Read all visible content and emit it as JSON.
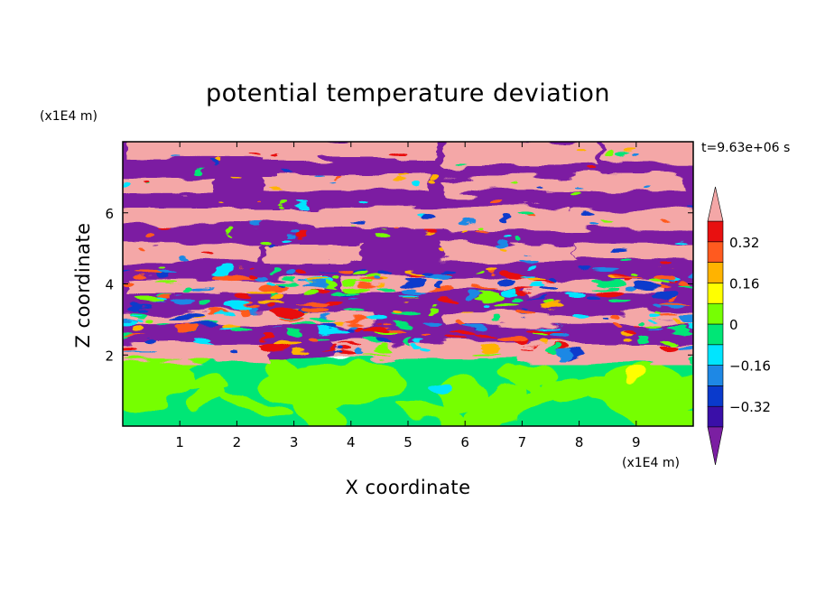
{
  "chart_data": {
    "type": "heatmap",
    "title": "potential temperature deviation",
    "xlabel": "X coordinate",
    "ylabel": "Z coordinate",
    "x_unit": "(x1E4 m)",
    "y_unit": "(x1E4 m)",
    "time_label": "t=9.63e+06 s",
    "xlim": [
      0,
      10
    ],
    "ylim": [
      0,
      8
    ],
    "x_ticks": [
      1,
      2,
      3,
      4,
      5,
      6,
      7,
      8,
      9
    ],
    "y_ticks": [
      2,
      4,
      6
    ],
    "colorbar": {
      "levels": [
        -0.4,
        -0.32,
        -0.24,
        -0.16,
        -0.08,
        0,
        0.08,
        0.16,
        0.24,
        0.32,
        0.4
      ],
      "tick_values": [
        0.32,
        0.16,
        0,
        -0.16,
        -0.32
      ],
      "tick_labels": [
        "0.32",
        "0.16",
        "0",
        "−0.16",
        "−0.32"
      ],
      "colors": [
        "#7B1FA2",
        "#3A0FA8",
        "#0A3ACC",
        "#1E88E5",
        "#00E5FF",
        "#00E676",
        "#76FF03",
        "#FFFF00",
        "#FFB300",
        "#FF5A1F",
        "#E81010",
        "#F4A7A7"
      ],
      "extend": "both"
    },
    "regions": [
      {
        "z_range": [
          0,
          1.95
        ],
        "dominant_colors": [
          "#00E676",
          "#76FF03"
        ],
        "description": "near-neutral lower layer"
      },
      {
        "z_range": [
          1.95,
          4.2
        ],
        "dominant_colors": [
          "#7B1FA2",
          "#F4A7A7",
          "#FF5A1F",
          "#00E676"
        ],
        "description": "turbulent mixed layer"
      },
      {
        "z_range": [
          4.2,
          7.95
        ],
        "dominant_colors": [
          "#7B1FA2",
          "#F4A7A7"
        ],
        "description": "alternating saturated bands"
      }
    ]
  }
}
